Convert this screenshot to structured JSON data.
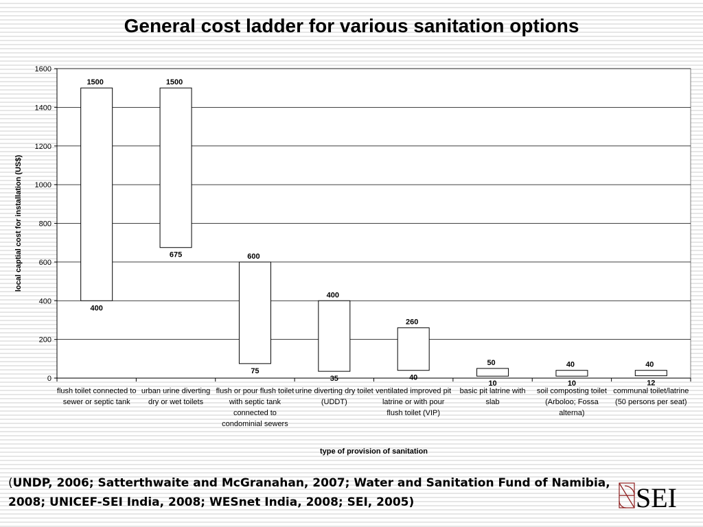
{
  "slide": {
    "title": "General cost ladder for various sanitation options",
    "citation_open": "(",
    "citation_text": "UNDP, 2006; Satterthwaite and McGranahan, 2007; Water and Sanitation Fund of Namibia, 2008; UNICEF-SEI India, 2008; WESnet India, 2008; SEI, 2005)",
    "logo_text": "SEI"
  },
  "chart_data": {
    "type": "bar",
    "subtype": "floating range bars (low to high)",
    "title": "",
    "xlabel": "type of provision of sanitation",
    "ylabel": "local captial cost for installation (US$)",
    "ylim": [
      0,
      1600
    ],
    "yticks": [
      0,
      200,
      400,
      600,
      800,
      1000,
      1200,
      1400,
      1600
    ],
    "grid": true,
    "legend": "none",
    "categories": [
      "flush toilet connected to sewer or septic tank",
      "urban urine diverting dry or wet toilets",
      "flush or pour flush toilet with septic tank connected to condominial sewers",
      "urine diverting dry toilet (UDDT)",
      "ventilated improved pit latrine or with pour flush toilet (VIP)",
      "basic pit latrine with slab",
      "soil composting toilet (Arboloo; Fossa alterna)",
      "communal toilet/latrine (50 persons per seat)"
    ],
    "low": [
      400,
      675,
      75,
      35,
      40,
      10,
      10,
      12
    ],
    "high": [
      1500,
      1500,
      600,
      400,
      260,
      50,
      40,
      40
    ],
    "colors": {
      "bar_fill": "#ffffff",
      "bar_stroke": "#000000",
      "grid": "#000000",
      "plot_bg": "#ffffff"
    }
  }
}
